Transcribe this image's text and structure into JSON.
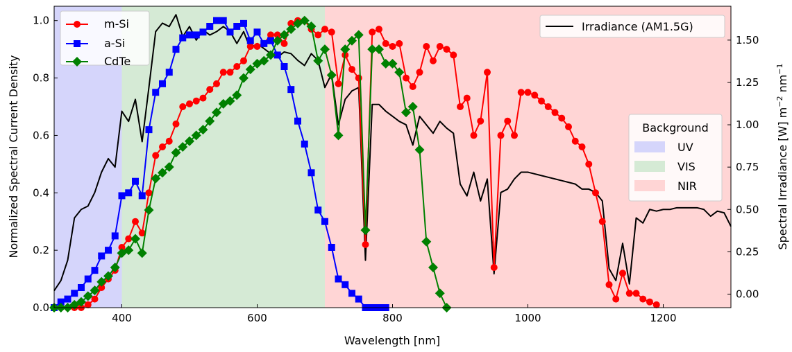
{
  "chart_data": {
    "type": "line",
    "xlabel": "Wavelength [nm]",
    "ylabel": "Normalized Spectral Current Density",
    "y2label_parts": {
      "pre": "Spectral Irradiance [W] m",
      "sup1": "−2",
      "mid": " nm",
      "sup2": "−1"
    },
    "xlim": [
      300,
      1300
    ],
    "ylim": [
      0,
      1.05
    ],
    "y2lim": [
      -0.08,
      1.7
    ],
    "xticks": [
      400,
      600,
      800,
      1000,
      1200
    ],
    "xtick_labels": [
      "400",
      "600",
      "800",
      "1000",
      "1200"
    ],
    "yticks": [
      0,
      0.2,
      0.4,
      0.6,
      0.8,
      1.0
    ],
    "ytick_labels": [
      "0.0",
      "0.2",
      "0.4",
      "0.6",
      "0.8",
      "1.0"
    ],
    "y2ticks": [
      0,
      0.25,
      0.5,
      0.75,
      1.0,
      1.25,
      1.5
    ],
    "y2tick_labels": [
      "0.00",
      "0.25",
      "0.50",
      "0.75",
      "1.00",
      "1.25",
      "1.50"
    ],
    "bands": [
      {
        "name": "UV",
        "from": 300,
        "to": 400,
        "color": "#d5d5fb"
      },
      {
        "name": "VIS",
        "from": 400,
        "to": 700,
        "color": "#d5ead5"
      },
      {
        "name": "NIR",
        "from": 700,
        "to": 1300,
        "color": "#ffd5d5"
      }
    ],
    "band_legend_title": "Background",
    "series": [
      {
        "name": "m-Si",
        "color": "#ff0000",
        "marker": "circle",
        "x": [
          300,
          310,
          320,
          330,
          340,
          350,
          360,
          370,
          380,
          390,
          400,
          410,
          420,
          430,
          440,
          450,
          460,
          470,
          480,
          490,
          500,
          510,
          520,
          530,
          540,
          550,
          560,
          570,
          580,
          590,
          600,
          610,
          620,
          630,
          640,
          650,
          660,
          670,
          680,
          690,
          700,
          710,
          720,
          730,
          740,
          750,
          760,
          770,
          780,
          790,
          800,
          810,
          820,
          830,
          840,
          850,
          860,
          870,
          880,
          890,
          900,
          910,
          920,
          930,
          940,
          950,
          960,
          970,
          980,
          990,
          1000,
          1010,
          1020,
          1030,
          1040,
          1050,
          1060,
          1070,
          1080,
          1090,
          1100,
          1110,
          1120,
          1130,
          1140,
          1150,
          1160,
          1170,
          1180,
          1190
        ],
        "y": [
          0,
          0,
          0,
          0,
          0,
          0.01,
          0.03,
          0.07,
          0.1,
          0.13,
          0.21,
          0.24,
          0.3,
          0.26,
          0.4,
          0.53,
          0.56,
          0.58,
          0.64,
          0.7,
          0.71,
          0.72,
          0.73,
          0.76,
          0.78,
          0.82,
          0.82,
          0.84,
          0.86,
          0.91,
          0.91,
          0.92,
          0.95,
          0.95,
          0.92,
          0.99,
          1.0,
          1.0,
          0.97,
          0.95,
          0.97,
          0.96,
          0.78,
          0.88,
          0.83,
          0.8,
          0.22,
          0.96,
          0.97,
          0.92,
          0.91,
          0.92,
          0.8,
          0.77,
          0.82,
          0.91,
          0.86,
          0.91,
          0.9,
          0.88,
          0.7,
          0.73,
          0.6,
          0.65,
          0.82,
          0.14,
          0.6,
          0.65,
          0.6,
          0.75,
          0.75,
          0.74,
          0.72,
          0.7,
          0.68,
          0.66,
          0.63,
          0.58,
          0.56,
          0.5,
          0.4,
          0.3,
          0.08,
          0.03,
          0.12,
          0.05,
          0.05,
          0.03,
          0.02,
          0.01
        ]
      },
      {
        "name": "a-Si",
        "color": "#0000ff",
        "marker": "square",
        "x": [
          300,
          310,
          320,
          330,
          340,
          350,
          360,
          370,
          380,
          390,
          400,
          410,
          420,
          430,
          440,
          450,
          460,
          470,
          480,
          490,
          500,
          510,
          520,
          530,
          540,
          550,
          560,
          570,
          580,
          590,
          600,
          610,
          620,
          630,
          640,
          650,
          660,
          670,
          680,
          690,
          700,
          710,
          720,
          730,
          740,
          750,
          760,
          770,
          780,
          790
        ],
        "y": [
          0,
          0.02,
          0.03,
          0.05,
          0.07,
          0.1,
          0.13,
          0.18,
          0.2,
          0.25,
          0.39,
          0.4,
          0.44,
          0.39,
          0.62,
          0.75,
          0.78,
          0.82,
          0.9,
          0.94,
          0.95,
          0.95,
          0.96,
          0.98,
          1.0,
          1.0,
          0.96,
          0.98,
          0.99,
          0.93,
          0.96,
          0.92,
          0.93,
          0.88,
          0.84,
          0.76,
          0.65,
          0.57,
          0.47,
          0.34,
          0.3,
          0.21,
          0.1,
          0.08,
          0.05,
          0.03,
          0,
          0,
          0,
          0
        ]
      },
      {
        "name": "CdTe",
        "color": "#008000",
        "marker": "diamond",
        "x": [
          300,
          310,
          320,
          330,
          340,
          350,
          360,
          370,
          380,
          390,
          400,
          410,
          420,
          430,
          440,
          450,
          460,
          470,
          480,
          490,
          500,
          510,
          520,
          530,
          540,
          550,
          560,
          570,
          580,
          590,
          600,
          610,
          620,
          630,
          640,
          650,
          660,
          670,
          680,
          690,
          700,
          710,
          720,
          730,
          740,
          750,
          760,
          770,
          780,
          790,
          800,
          810,
          820,
          830,
          840,
          850,
          860,
          870,
          880
        ],
        "y": [
          0,
          0,
          0,
          0.01,
          0.02,
          0.04,
          0.06,
          0.09,
          0.11,
          0.14,
          0.19,
          0.2,
          0.24,
          0.19,
          0.34,
          0.45,
          0.47,
          0.49,
          0.54,
          0.56,
          0.58,
          0.6,
          0.62,
          0.65,
          0.68,
          0.71,
          0.72,
          0.74,
          0.8,
          0.83,
          0.85,
          0.86,
          0.88,
          0.93,
          0.95,
          0.97,
          0.99,
          1.0,
          0.98,
          0.86,
          0.9,
          0.81,
          0.6,
          0.9,
          0.93,
          0.95,
          0.27,
          0.9,
          0.9,
          0.85,
          0.85,
          0.82,
          0.68,
          0.7,
          0.55,
          0.23,
          0.14,
          0.05,
          0
        ]
      }
    ],
    "irradiance": {
      "name": "Irradiance (AM1.5G)",
      "color": "#000000",
      "x": [
        300,
        310,
        320,
        330,
        340,
        350,
        360,
        370,
        380,
        390,
        400,
        410,
        420,
        430,
        440,
        450,
        460,
        470,
        480,
        490,
        500,
        510,
        520,
        530,
        540,
        550,
        560,
        570,
        580,
        590,
        600,
        610,
        620,
        630,
        640,
        650,
        660,
        670,
        680,
        690,
        700,
        710,
        720,
        730,
        740,
        750,
        760,
        770,
        780,
        790,
        800,
        810,
        820,
        830,
        840,
        850,
        860,
        870,
        880,
        890,
        900,
        910,
        920,
        930,
        940,
        950,
        960,
        970,
        980,
        990,
        1000,
        1010,
        1020,
        1030,
        1040,
        1050,
        1060,
        1070,
        1080,
        1090,
        1100,
        1110,
        1120,
        1130,
        1140,
        1150,
        1160,
        1170,
        1180,
        1190,
        1200,
        1210,
        1220,
        1230,
        1240,
        1250,
        1260,
        1270,
        1280,
        1290,
        1300
      ],
      "y": [
        0.02,
        0.08,
        0.2,
        0.45,
        0.5,
        0.52,
        0.6,
        0.72,
        0.8,
        0.75,
        1.08,
        1.02,
        1.15,
        0.9,
        1.22,
        1.55,
        1.6,
        1.58,
        1.65,
        1.52,
        1.58,
        1.5,
        1.56,
        1.53,
        1.55,
        1.58,
        1.55,
        1.48,
        1.55,
        1.45,
        1.48,
        1.45,
        1.42,
        1.4,
        1.43,
        1.42,
        1.38,
        1.35,
        1.42,
        1.38,
        1.22,
        1.3,
        1.0,
        1.15,
        1.2,
        1.22,
        0.2,
        1.12,
        1.12,
        1.08,
        1.05,
        1.02,
        1.0,
        0.88,
        1.05,
        1.0,
        0.95,
        1.02,
        0.98,
        0.95,
        0.65,
        0.58,
        0.72,
        0.55,
        0.68,
        0.12,
        0.6,
        0.62,
        0.68,
        0.72,
        0.72,
        0.71,
        0.7,
        0.69,
        0.68,
        0.67,
        0.66,
        0.65,
        0.62,
        0.62,
        0.6,
        0.55,
        0.15,
        0.08,
        0.3,
        0.06,
        0.45,
        0.42,
        0.5,
        0.49,
        0.5,
        0.5,
        0.51,
        0.51,
        0.51,
        0.51,
        0.5,
        0.46,
        0.49,
        0.48,
        0.4
      ]
    }
  }
}
